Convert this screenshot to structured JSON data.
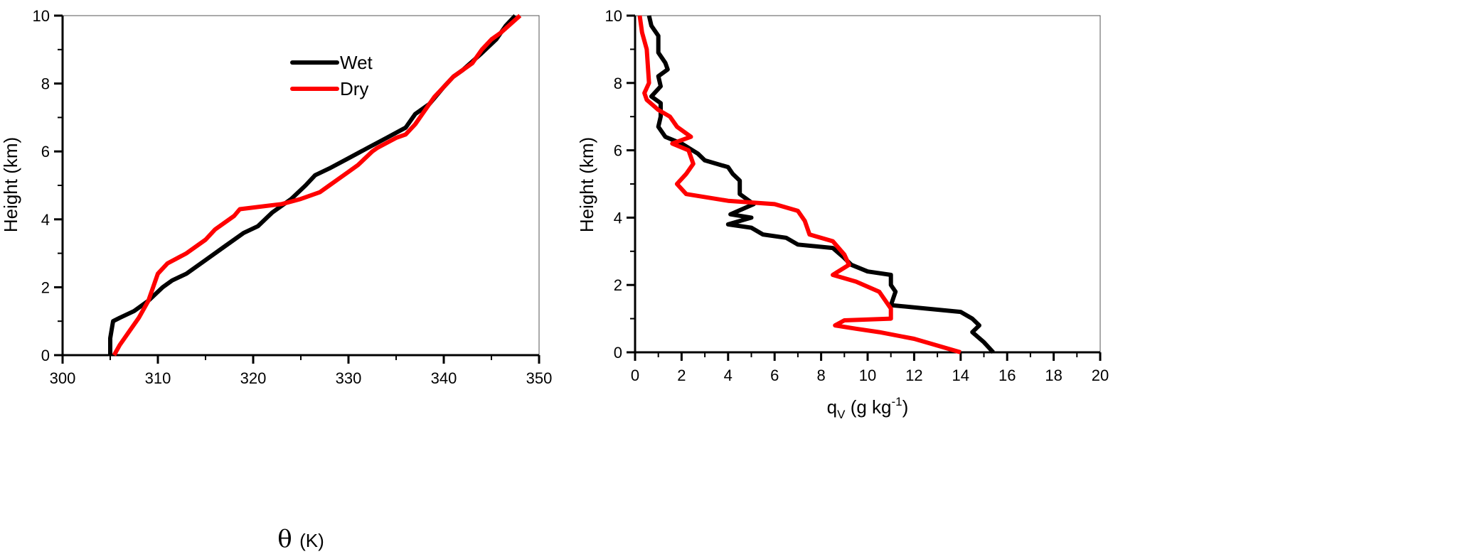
{
  "chart_data": [
    {
      "type": "line",
      "xlabel_symbol": "θ",
      "xlabel_unit": "(K)",
      "ylabel": "Height (km)",
      "xlim": [
        300,
        350
      ],
      "ylim": [
        0,
        10
      ],
      "xticks": [
        300,
        310,
        320,
        330,
        340,
        350
      ],
      "yticks": [
        0,
        2,
        4,
        6,
        8,
        10
      ],
      "legend": {
        "placement": "top-center",
        "entries": [
          "Wet",
          "Dry"
        ]
      },
      "series": [
        {
          "name": "Wet",
          "color": "#000000",
          "points": [
            [
              305.0,
              0
            ],
            [
              305.0,
              0.5
            ],
            [
              305.3,
              1.0
            ],
            [
              306,
              1.1
            ],
            [
              307.5,
              1.3
            ],
            [
              309,
              1.6
            ],
            [
              310.5,
              2.0
            ],
            [
              311.5,
              2.2
            ],
            [
              313,
              2.4
            ],
            [
              315,
              2.8
            ],
            [
              317,
              3.2
            ],
            [
              319,
              3.6
            ],
            [
              320.5,
              3.8
            ],
            [
              322,
              4.2
            ],
            [
              324,
              4.6
            ],
            [
              325.5,
              5.0
            ],
            [
              326.5,
              5.3
            ],
            [
              328,
              5.5
            ],
            [
              330,
              5.8
            ],
            [
              332,
              6.1
            ],
            [
              334,
              6.4
            ],
            [
              336,
              6.7
            ],
            [
              337,
              7.1
            ],
            [
              338.5,
              7.4
            ],
            [
              340,
              7.9
            ],
            [
              341,
              8.2
            ],
            [
              342,
              8.4
            ],
            [
              344,
              8.9
            ],
            [
              345.5,
              9.3
            ],
            [
              346.5,
              9.7
            ],
            [
              347.5,
              10
            ]
          ]
        },
        {
          "name": "Dry",
          "color": "#ff0000",
          "points": [
            [
              305.4,
              0
            ],
            [
              306,
              0.3
            ],
            [
              307,
              0.7
            ],
            [
              308,
              1.1
            ],
            [
              309,
              1.6
            ],
            [
              309.5,
              2.0
            ],
            [
              310,
              2.4
            ],
            [
              311,
              2.7
            ],
            [
              313,
              3.0
            ],
            [
              315,
              3.4
            ],
            [
              316,
              3.7
            ],
            [
              318,
              4.1
            ],
            [
              318.6,
              4.3
            ],
            [
              323,
              4.45
            ],
            [
              325,
              4.6
            ],
            [
              327,
              4.8
            ],
            [
              328,
              5.0
            ],
            [
              330,
              5.4
            ],
            [
              331,
              5.6
            ],
            [
              332.5,
              6.0
            ],
            [
              333,
              6.1
            ],
            [
              335,
              6.4
            ],
            [
              336,
              6.5
            ],
            [
              337,
              6.8
            ],
            [
              338,
              7.2
            ],
            [
              339,
              7.6
            ],
            [
              340,
              7.9
            ],
            [
              341,
              8.2
            ],
            [
              343,
              8.6
            ],
            [
              344,
              9.0
            ],
            [
              345,
              9.3
            ],
            [
              346,
              9.5
            ],
            [
              348,
              10
            ]
          ]
        }
      ]
    },
    {
      "type": "line",
      "xlabel_main": "q",
      "xlabel_sub": "V",
      "xlabel_unit": " (g kg",
      "xlabel_sup": "-1",
      "xlabel_close": ")",
      "ylabel": "Height (km)",
      "xlim": [
        0,
        20
      ],
      "ylim": [
        0,
        10
      ],
      "xticks": [
        0,
        2,
        4,
        6,
        8,
        10,
        12,
        14,
        16,
        18,
        20
      ],
      "yticks": [
        0,
        2,
        4,
        6,
        8,
        10
      ],
      "series": [
        {
          "name": "Wet",
          "color": "#000000",
          "points": [
            [
              15.4,
              0
            ],
            [
              15.0,
              0.3
            ],
            [
              14.5,
              0.6
            ],
            [
              14.8,
              0.8
            ],
            [
              14.5,
              1.0
            ],
            [
              14,
              1.2
            ],
            [
              12.5,
              1.3
            ],
            [
              11,
              1.4
            ],
            [
              11.2,
              1.8
            ],
            [
              11,
              2.0
            ],
            [
              11,
              2.3
            ],
            [
              10,
              2.4
            ],
            [
              9.3,
              2.6
            ],
            [
              9.0,
              2.8
            ],
            [
              8.5,
              3.1
            ],
            [
              7.0,
              3.2
            ],
            [
              6.5,
              3.4
            ],
            [
              5.5,
              3.5
            ],
            [
              5.0,
              3.7
            ],
            [
              4.0,
              3.8
            ],
            [
              5.0,
              4.0
            ],
            [
              4.1,
              4.1
            ],
            [
              5.1,
              4.4
            ],
            [
              4.5,
              4.7
            ],
            [
              4.5,
              5.1
            ],
            [
              4.2,
              5.3
            ],
            [
              4.0,
              5.5
            ],
            [
              3.0,
              5.7
            ],
            [
              2.7,
              5.9
            ],
            [
              2.0,
              6.2
            ],
            [
              1.3,
              6.4
            ],
            [
              1.0,
              6.7
            ],
            [
              1.1,
              7.0
            ],
            [
              1.1,
              7.4
            ],
            [
              0.7,
              7.6
            ],
            [
              1.1,
              7.9
            ],
            [
              1.0,
              8.2
            ],
            [
              1.4,
              8.4
            ],
            [
              1.3,
              8.6
            ],
            [
              1.0,
              8.9
            ],
            [
              1.0,
              9.4
            ],
            [
              0.7,
              9.7
            ],
            [
              0.6,
              10
            ]
          ]
        },
        {
          "name": "Dry",
          "color": "#ff0000",
          "points": [
            [
              14,
              0
            ],
            [
              13,
              0.2
            ],
            [
              12,
              0.4
            ],
            [
              10.5,
              0.6
            ],
            [
              9.5,
              0.7
            ],
            [
              8.6,
              0.8
            ],
            [
              9.0,
              0.95
            ],
            [
              11,
              1.0
            ],
            [
              11,
              1.3
            ],
            [
              10.5,
              1.8
            ],
            [
              9.5,
              2.1
            ],
            [
              8.5,
              2.3
            ],
            [
              9.2,
              2.6
            ],
            [
              9.0,
              2.9
            ],
            [
              8.5,
              3.3
            ],
            [
              7.5,
              3.5
            ],
            [
              7.3,
              3.9
            ],
            [
              7.0,
              4.2
            ],
            [
              6.0,
              4.4
            ],
            [
              4.0,
              4.5
            ],
            [
              2.2,
              4.7
            ],
            [
              1.8,
              5.0
            ],
            [
              2.2,
              5.3
            ],
            [
              2.5,
              5.6
            ],
            [
              2.3,
              6.0
            ],
            [
              1.6,
              6.2
            ],
            [
              2.4,
              6.4
            ],
            [
              1.8,
              6.7
            ],
            [
              1.5,
              7.0
            ],
            [
              1.0,
              7.2
            ],
            [
              0.5,
              7.5
            ],
            [
              0.4,
              7.7
            ],
            [
              0.6,
              8.0
            ],
            [
              0.5,
              9.0
            ],
            [
              0.3,
              9.5
            ],
            [
              0.2,
              10
            ]
          ]
        }
      ]
    }
  ]
}
